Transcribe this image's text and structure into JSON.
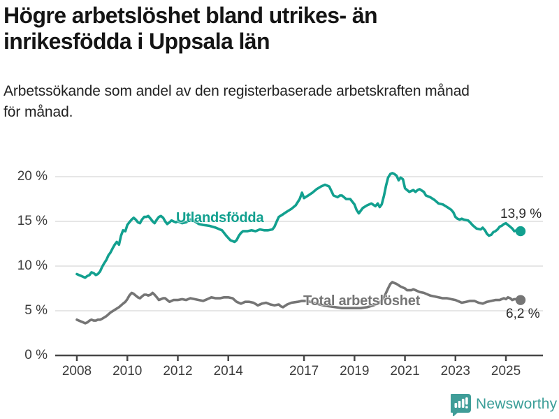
{
  "header": {
    "title_line1": "Högre arbetslöshet bland utrikes- än",
    "title_line2": "inrikesfödda i Uppsala län",
    "subtitle_line1": "Arbetssökande som andel av den registerbaserade arbetskraften månad",
    "subtitle_line2": "för månad."
  },
  "colors": {
    "series_teal": "#12A08F",
    "series_gray": "#757575",
    "grid": "#d8d8d8",
    "axis": "#474747",
    "logo_teal": "#3F9D98"
  },
  "footer": {
    "brand": "Newsworthy",
    "logo_icon": "bar-chart-speech-bubble-icon"
  },
  "chart_data": {
    "type": "line",
    "unit": "%",
    "grid": true,
    "legend": "inline-labels",
    "x_axis": {
      "ticks": [
        2008,
        2010,
        2012,
        2014,
        2017,
        2019,
        2021,
        2023,
        2025
      ]
    },
    "y_axis": {
      "values": [
        0,
        5,
        10,
        15,
        20
      ],
      "labels": [
        "0 %",
        "5 %",
        "10 %",
        "15 %",
        "20 %"
      ],
      "ylim": [
        0,
        21.5
      ]
    },
    "series": [
      {
        "name": "Utlandsfödda",
        "color": "#12A08F",
        "end_label": "13,9 %",
        "end_value": 13.9,
        "points": [
          [
            2008.0,
            9.1
          ],
          [
            2008.08,
            9.0
          ],
          [
            2008.17,
            8.9
          ],
          [
            2008.25,
            8.8
          ],
          [
            2008.33,
            8.7
          ],
          [
            2008.42,
            8.9
          ],
          [
            2008.5,
            9.0
          ],
          [
            2008.58,
            9.3
          ],
          [
            2008.67,
            9.2
          ],
          [
            2008.75,
            9.0
          ],
          [
            2008.83,
            9.1
          ],
          [
            2008.92,
            9.4
          ],
          [
            2009.0,
            9.9
          ],
          [
            2009.08,
            10.3
          ],
          [
            2009.17,
            10.7
          ],
          [
            2009.25,
            11.2
          ],
          [
            2009.33,
            11.5
          ],
          [
            2009.42,
            12.0
          ],
          [
            2009.5,
            12.4
          ],
          [
            2009.58,
            12.7
          ],
          [
            2009.67,
            12.4
          ],
          [
            2009.75,
            13.4
          ],
          [
            2009.83,
            14.0
          ],
          [
            2009.92,
            13.9
          ],
          [
            2010.0,
            14.6
          ],
          [
            2010.08,
            14.9
          ],
          [
            2010.17,
            15.2
          ],
          [
            2010.25,
            15.4
          ],
          [
            2010.33,
            15.2
          ],
          [
            2010.42,
            14.9
          ],
          [
            2010.5,
            14.8
          ],
          [
            2010.58,
            15.2
          ],
          [
            2010.67,
            15.5
          ],
          [
            2010.75,
            15.5
          ],
          [
            2010.83,
            15.6
          ],
          [
            2010.92,
            15.3
          ],
          [
            2011.0,
            15.0
          ],
          [
            2011.08,
            14.8
          ],
          [
            2011.17,
            15.2
          ],
          [
            2011.25,
            15.5
          ],
          [
            2011.33,
            15.6
          ],
          [
            2011.42,
            15.4
          ],
          [
            2011.5,
            15.0
          ],
          [
            2011.58,
            14.7
          ],
          [
            2011.67,
            14.9
          ],
          [
            2011.75,
            15.1
          ],
          [
            2011.83,
            15.0
          ],
          [
            2011.92,
            14.9
          ],
          [
            2012.0,
            15.0
          ],
          [
            2012.17,
            14.8
          ],
          [
            2012.33,
            14.9
          ],
          [
            2012.5,
            15.2
          ],
          [
            2012.67,
            15.0
          ],
          [
            2012.83,
            14.7
          ],
          [
            2013.0,
            14.6
          ],
          [
            2013.25,
            14.5
          ],
          [
            2013.5,
            14.3
          ],
          [
            2013.75,
            14.0
          ],
          [
            2013.92,
            13.4
          ],
          [
            2014.08,
            12.9
          ],
          [
            2014.25,
            12.7
          ],
          [
            2014.33,
            12.9
          ],
          [
            2014.42,
            13.4
          ],
          [
            2014.5,
            13.7
          ],
          [
            2014.58,
            13.9
          ],
          [
            2014.75,
            13.9
          ],
          [
            2014.92,
            14.0
          ],
          [
            2015.08,
            13.9
          ],
          [
            2015.25,
            14.1
          ],
          [
            2015.42,
            14.0
          ],
          [
            2015.58,
            14.0
          ],
          [
            2015.75,
            14.1
          ],
          [
            2015.83,
            14.4
          ],
          [
            2015.92,
            15.0
          ],
          [
            2016.0,
            15.5
          ],
          [
            2016.17,
            15.8
          ],
          [
            2016.33,
            16.1
          ],
          [
            2016.5,
            16.4
          ],
          [
            2016.67,
            16.8
          ],
          [
            2016.83,
            17.5
          ],
          [
            2016.92,
            18.2
          ],
          [
            2017.0,
            17.6
          ],
          [
            2017.17,
            17.9
          ],
          [
            2017.33,
            18.2
          ],
          [
            2017.5,
            18.6
          ],
          [
            2017.67,
            18.9
          ],
          [
            2017.83,
            19.1
          ],
          [
            2017.92,
            19.0
          ],
          [
            2018.0,
            18.9
          ],
          [
            2018.17,
            17.9
          ],
          [
            2018.33,
            17.7
          ],
          [
            2018.42,
            17.9
          ],
          [
            2018.5,
            17.9
          ],
          [
            2018.67,
            17.5
          ],
          [
            2018.83,
            17.5
          ],
          [
            2019.0,
            16.9
          ],
          [
            2019.08,
            16.3
          ],
          [
            2019.17,
            15.9
          ],
          [
            2019.33,
            16.5
          ],
          [
            2019.5,
            16.8
          ],
          [
            2019.67,
            17.0
          ],
          [
            2019.83,
            16.7
          ],
          [
            2019.92,
            17.0
          ],
          [
            2020.0,
            16.6
          ],
          [
            2020.08,
            16.9
          ],
          [
            2020.17,
            17.9
          ],
          [
            2020.25,
            19.0
          ],
          [
            2020.33,
            19.9
          ],
          [
            2020.42,
            20.3
          ],
          [
            2020.5,
            20.4
          ],
          [
            2020.58,
            20.3
          ],
          [
            2020.67,
            20.1
          ],
          [
            2020.75,
            19.6
          ],
          [
            2020.83,
            19.9
          ],
          [
            2020.92,
            19.7
          ],
          [
            2021.0,
            18.7
          ],
          [
            2021.17,
            18.3
          ],
          [
            2021.33,
            18.5
          ],
          [
            2021.42,
            18.3
          ],
          [
            2021.5,
            18.5
          ],
          [
            2021.58,
            18.6
          ],
          [
            2021.75,
            18.3
          ],
          [
            2021.83,
            17.9
          ],
          [
            2022.0,
            17.7
          ],
          [
            2022.17,
            17.4
          ],
          [
            2022.33,
            17.0
          ],
          [
            2022.5,
            16.9
          ],
          [
            2022.67,
            16.6
          ],
          [
            2022.83,
            16.3
          ],
          [
            2022.92,
            16.0
          ],
          [
            2023.0,
            15.5
          ],
          [
            2023.08,
            15.3
          ],
          [
            2023.17,
            15.2
          ],
          [
            2023.25,
            15.3
          ],
          [
            2023.33,
            15.2
          ],
          [
            2023.5,
            15.1
          ],
          [
            2023.58,
            14.9
          ],
          [
            2023.67,
            14.6
          ],
          [
            2023.83,
            14.2
          ],
          [
            2024.0,
            14.1
          ],
          [
            2024.08,
            14.3
          ],
          [
            2024.17,
            14.0
          ],
          [
            2024.25,
            13.6
          ],
          [
            2024.33,
            13.4
          ],
          [
            2024.42,
            13.5
          ],
          [
            2024.5,
            13.8
          ],
          [
            2024.58,
            13.9
          ],
          [
            2024.67,
            14.1
          ],
          [
            2024.75,
            14.4
          ],
          [
            2024.83,
            14.5
          ],
          [
            2024.92,
            14.7
          ],
          [
            2025.0,
            14.8
          ],
          [
            2025.08,
            14.6
          ],
          [
            2025.17,
            14.4
          ],
          [
            2025.25,
            14.2
          ],
          [
            2025.33,
            13.9
          ],
          [
            2025.42,
            14.0
          ],
          [
            2025.58,
            13.9
          ]
        ]
      },
      {
        "name": "Total arbetslöshet",
        "color": "#757575",
        "end_label": "6,2 %",
        "end_value": 6.2,
        "points": [
          [
            2008.0,
            4.0
          ],
          [
            2008.08,
            3.9
          ],
          [
            2008.17,
            3.8
          ],
          [
            2008.25,
            3.7
          ],
          [
            2008.33,
            3.6
          ],
          [
            2008.42,
            3.7
          ],
          [
            2008.5,
            3.9
          ],
          [
            2008.58,
            4.0
          ],
          [
            2008.67,
            3.9
          ],
          [
            2008.75,
            3.9
          ],
          [
            2008.83,
            4.0
          ],
          [
            2008.92,
            4.0
          ],
          [
            2009.0,
            4.1
          ],
          [
            2009.17,
            4.4
          ],
          [
            2009.33,
            4.8
          ],
          [
            2009.5,
            5.1
          ],
          [
            2009.67,
            5.4
          ],
          [
            2009.83,
            5.8
          ],
          [
            2009.92,
            6.0
          ],
          [
            2010.0,
            6.3
          ],
          [
            2010.08,
            6.7
          ],
          [
            2010.17,
            7.0
          ],
          [
            2010.25,
            6.9
          ],
          [
            2010.33,
            6.7
          ],
          [
            2010.42,
            6.5
          ],
          [
            2010.5,
            6.4
          ],
          [
            2010.58,
            6.6
          ],
          [
            2010.67,
            6.8
          ],
          [
            2010.75,
            6.8
          ],
          [
            2010.83,
            6.7
          ],
          [
            2010.92,
            6.8
          ],
          [
            2011.0,
            7.0
          ],
          [
            2011.08,
            6.8
          ],
          [
            2011.17,
            6.5
          ],
          [
            2011.25,
            6.2
          ],
          [
            2011.33,
            6.3
          ],
          [
            2011.42,
            6.4
          ],
          [
            2011.5,
            6.4
          ],
          [
            2011.58,
            6.2
          ],
          [
            2011.67,
            6.0
          ],
          [
            2011.75,
            6.1
          ],
          [
            2011.83,
            6.2
          ],
          [
            2011.92,
            6.2
          ],
          [
            2012.0,
            6.2
          ],
          [
            2012.17,
            6.3
          ],
          [
            2012.33,
            6.2
          ],
          [
            2012.5,
            6.4
          ],
          [
            2012.67,
            6.3
          ],
          [
            2012.83,
            6.2
          ],
          [
            2013.0,
            6.1
          ],
          [
            2013.17,
            6.3
          ],
          [
            2013.33,
            6.5
          ],
          [
            2013.5,
            6.4
          ],
          [
            2013.67,
            6.4
          ],
          [
            2013.83,
            6.5
          ],
          [
            2014.0,
            6.5
          ],
          [
            2014.17,
            6.4
          ],
          [
            2014.33,
            6.0
          ],
          [
            2014.5,
            5.8
          ],
          [
            2014.67,
            6.0
          ],
          [
            2014.83,
            6.0
          ],
          [
            2015.0,
            5.9
          ],
          [
            2015.17,
            5.6
          ],
          [
            2015.33,
            5.8
          ],
          [
            2015.5,
            5.9
          ],
          [
            2015.67,
            5.7
          ],
          [
            2015.83,
            5.6
          ],
          [
            2016.0,
            5.7
          ],
          [
            2016.08,
            5.5
          ],
          [
            2016.17,
            5.4
          ],
          [
            2016.33,
            5.7
          ],
          [
            2016.5,
            5.9
          ],
          [
            2016.75,
            6.0
          ],
          [
            2016.92,
            6.1
          ],
          [
            2017.08,
            6.1
          ],
          [
            2017.25,
            6.0
          ],
          [
            2017.5,
            5.8
          ],
          [
            2017.75,
            5.6
          ],
          [
            2018.0,
            5.5
          ],
          [
            2018.25,
            5.4
          ],
          [
            2018.5,
            5.3
          ],
          [
            2018.75,
            5.3
          ],
          [
            2019.0,
            5.3
          ],
          [
            2019.25,
            5.3
          ],
          [
            2019.5,
            5.4
          ],
          [
            2019.75,
            5.6
          ],
          [
            2020.0,
            5.9
          ],
          [
            2020.17,
            6.5
          ],
          [
            2020.33,
            7.5
          ],
          [
            2020.42,
            8.0
          ],
          [
            2020.5,
            8.2
          ],
          [
            2020.58,
            8.1
          ],
          [
            2020.67,
            8.0
          ],
          [
            2020.83,
            7.7
          ],
          [
            2021.0,
            7.5
          ],
          [
            2021.08,
            7.3
          ],
          [
            2021.25,
            7.3
          ],
          [
            2021.33,
            7.4
          ],
          [
            2021.42,
            7.3
          ],
          [
            2021.58,
            7.1
          ],
          [
            2021.75,
            7.0
          ],
          [
            2021.92,
            6.8
          ],
          [
            2022.0,
            6.7
          ],
          [
            2022.17,
            6.6
          ],
          [
            2022.33,
            6.5
          ],
          [
            2022.5,
            6.4
          ],
          [
            2022.67,
            6.4
          ],
          [
            2022.83,
            6.3
          ],
          [
            2023.0,
            6.2
          ],
          [
            2023.17,
            6.0
          ],
          [
            2023.25,
            5.9
          ],
          [
            2023.42,
            6.0
          ],
          [
            2023.58,
            6.1
          ],
          [
            2023.75,
            6.1
          ],
          [
            2023.92,
            5.9
          ],
          [
            2024.08,
            5.8
          ],
          [
            2024.25,
            6.0
          ],
          [
            2024.42,
            6.1
          ],
          [
            2024.58,
            6.2
          ],
          [
            2024.75,
            6.2
          ],
          [
            2024.92,
            6.4
          ],
          [
            2025.0,
            6.3
          ],
          [
            2025.08,
            6.5
          ],
          [
            2025.17,
            6.4
          ],
          [
            2025.25,
            6.2
          ],
          [
            2025.33,
            6.3
          ],
          [
            2025.42,
            6.3
          ],
          [
            2025.58,
            6.2
          ]
        ]
      }
    ]
  }
}
